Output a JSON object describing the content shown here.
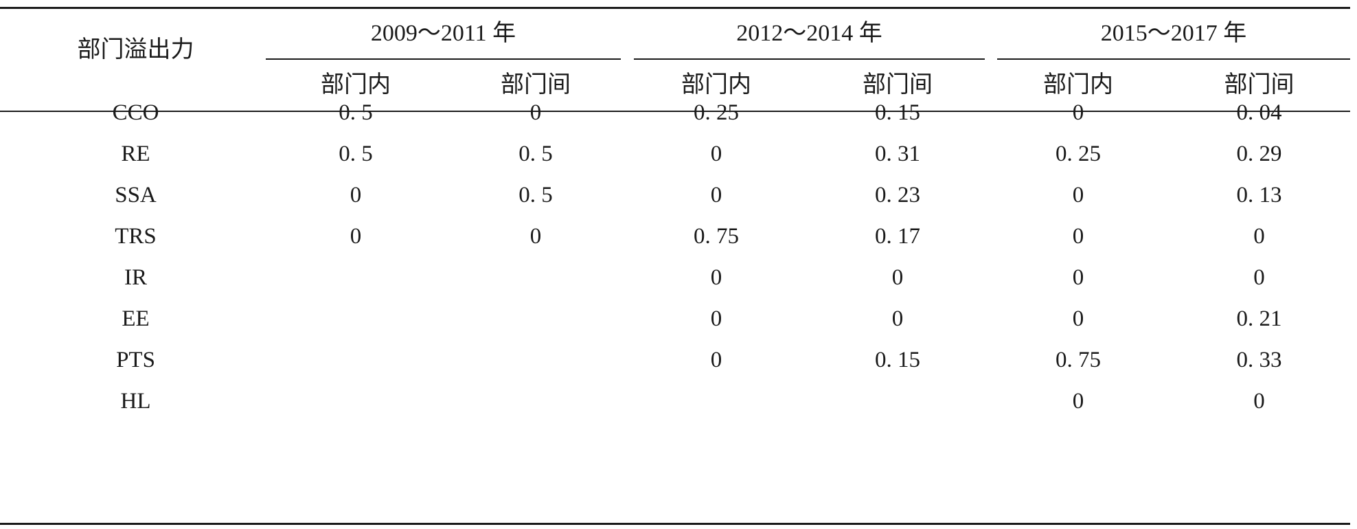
{
  "table": {
    "corner_header": "部门溢出力",
    "period_headers": [
      "2009～2011 年",
      "2012～2014 年",
      "2015～2017 年"
    ],
    "sub_headers": [
      "部门内",
      "部门间",
      "部门内",
      "部门间",
      "部门内",
      "部门间"
    ],
    "rows": [
      {
        "label": "CCO",
        "values": [
          "0. 5",
          "0",
          "0. 25",
          "0. 15",
          "0",
          "0. 04"
        ]
      },
      {
        "label": "RE",
        "values": [
          "0. 5",
          "0. 5",
          "0",
          "0. 31",
          "0. 25",
          "0. 29"
        ]
      },
      {
        "label": "SSA",
        "values": [
          "0",
          "0. 5",
          "0",
          "0. 23",
          "0",
          "0. 13"
        ]
      },
      {
        "label": "TRS",
        "values": [
          "0",
          "0",
          "0. 75",
          "0. 17",
          "0",
          "0"
        ]
      },
      {
        "label": "IR",
        "values": [
          "",
          "",
          "0",
          "0",
          "0",
          "0"
        ]
      },
      {
        "label": "EE",
        "values": [
          "",
          "",
          "0",
          "0",
          "0",
          "0. 21"
        ]
      },
      {
        "label": "PTS",
        "values": [
          "",
          "",
          "0",
          "0. 15",
          "0. 75",
          "0. 33"
        ]
      },
      {
        "label": "HL",
        "values": [
          "",
          "",
          "",
          "",
          "0",
          "0"
        ]
      }
    ]
  }
}
